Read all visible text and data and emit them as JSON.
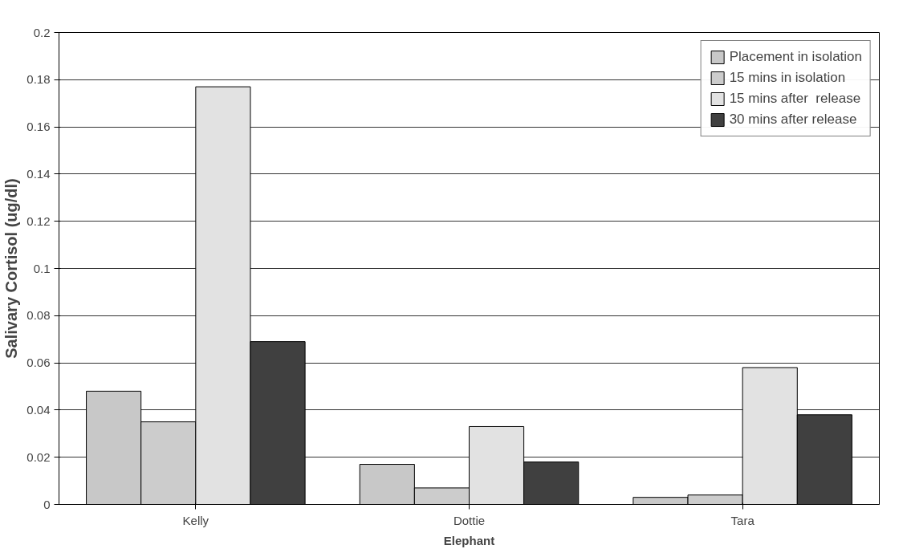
{
  "chart_data": {
    "type": "bar",
    "xlabel": "Elephant",
    "ylabel": "Salivary Cortisol (ug/dl)",
    "categories": [
      "Kelly",
      "Dottie",
      "Tara"
    ],
    "series": [
      {
        "name": "Placement in isolation",
        "color": "#c8c8c8",
        "values": [
          0.048,
          0.017,
          0.003
        ]
      },
      {
        "name": "15 mins in isolation",
        "color": "#cccccc",
        "values": [
          0.035,
          0.007,
          0.004
        ]
      },
      {
        "name": "15 mins after  release",
        "color": "#e2e2e2",
        "values": [
          0.177,
          0.033,
          0.058
        ]
      },
      {
        "name": "30 mins after release",
        "color": "#404040",
        "values": [
          0.069,
          0.018,
          0.038
        ]
      }
    ],
    "ylim": [
      0,
      0.2
    ],
    "yticks": [
      0,
      0.02,
      0.04,
      0.06,
      0.08,
      0.1,
      0.12,
      0.14,
      0.16,
      0.18,
      0.2
    ],
    "grid": "y",
    "legend": "top right"
  }
}
